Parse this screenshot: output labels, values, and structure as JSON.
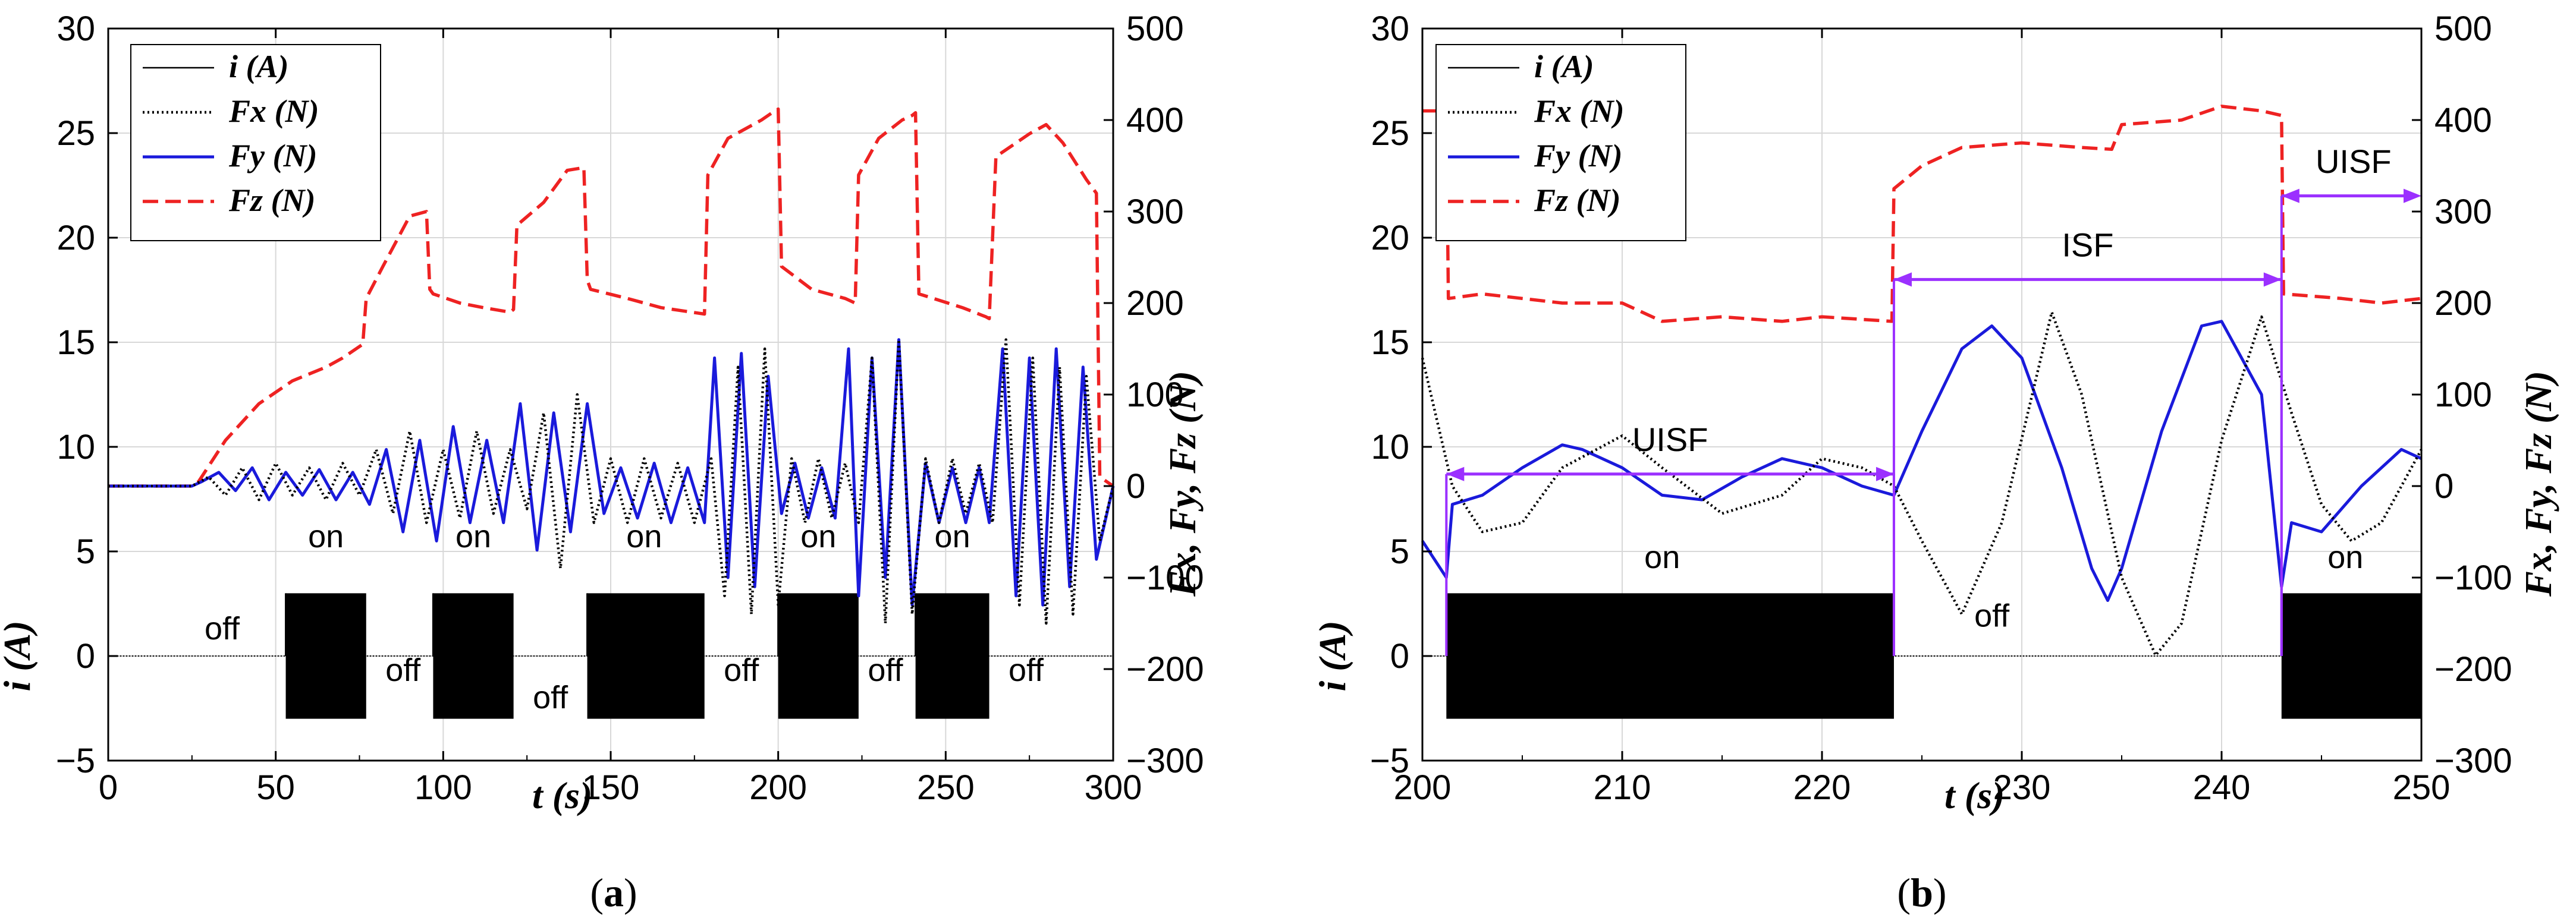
{
  "colors": {
    "i": "#000000",
    "fx": "#000000",
    "fy": "#1a1adb",
    "fz": "#ee2222",
    "isf_arrow": "#9b30ff",
    "grid": "#d8d8d8"
  },
  "chart_data": [
    {
      "type": "line",
      "panel": "a",
      "caption_open": "(",
      "caption_letter": "a",
      "caption_close": ")",
      "xlabel": "t (s)",
      "ylabel_left": "i (A)",
      "ylabel_right": "Fx, Fy, Fz (N)",
      "xlim": [
        0,
        300
      ],
      "ylim_left": [
        -5,
        30
      ],
      "ylim_right": [
        -300,
        500
      ],
      "xticks": [
        "0",
        "50",
        "100",
        "150",
        "200",
        "250",
        "300"
      ],
      "yticks_left": [
        "−5",
        "0",
        "5",
        "10",
        "15",
        "20",
        "25",
        "30"
      ],
      "yticks_right": [
        "−300",
        "−200",
        "−100",
        "0",
        "100",
        "200",
        "300",
        "400",
        "500"
      ],
      "grid": true,
      "legend_position": "top-left",
      "legend": [
        {
          "key": "i",
          "label": "i (A)",
          "style": "solid-thin"
        },
        {
          "key": "fx",
          "label": "Fx (N)",
          "style": "dotted"
        },
        {
          "key": "fy",
          "label": "Fy (N)",
          "style": "solid"
        },
        {
          "key": "fz",
          "label": "Fz (N)",
          "style": "dashed"
        }
      ],
      "current_bursts": [
        [
          53,
          77
        ],
        [
          97,
          121
        ],
        [
          143,
          178
        ],
        [
          200,
          224
        ],
        [
          241,
          263
        ]
      ],
      "current_amplitude_A": 3,
      "state_labels": [
        {
          "text": "off",
          "x": 34,
          "y": 0.8
        },
        {
          "text": "on",
          "x": 65,
          "y": 5.2
        },
        {
          "text": "off",
          "x": 88,
          "y": -1.2
        },
        {
          "text": "on",
          "x": 109,
          "y": 5.2
        },
        {
          "text": "off",
          "x": 132,
          "y": -2.5
        },
        {
          "text": "on",
          "x": 160,
          "y": 5.2
        },
        {
          "text": "off",
          "x": 189,
          "y": -1.2
        },
        {
          "text": "on",
          "x": 212,
          "y": 5.2
        },
        {
          "text": "off",
          "x": 232,
          "y": -1.2
        },
        {
          "text": "on",
          "x": 252,
          "y": 5.2
        },
        {
          "text": "off",
          "x": 274,
          "y": -1.2
        }
      ],
      "series": [
        {
          "name": "Fz (N)",
          "key": "fz",
          "x": [
            0,
            25,
            27,
            35,
            45,
            55,
            65,
            70,
            76,
            77,
            82,
            90,
            95,
            96,
            97,
            105,
            112,
            120,
            121,
            122,
            130,
            137,
            142,
            143,
            144,
            155,
            165,
            178,
            179,
            185,
            195,
            199,
            200,
            201,
            210,
            220,
            223,
            224,
            230,
            237,
            240,
            241,
            242,
            255,
            262,
            263,
            265,
            275,
            280,
            285,
            292,
            295,
            296,
            300
          ],
          "y": [
            0,
            0,
            5,
            50,
            90,
            115,
            130,
            140,
            155,
            205,
            240,
            295,
            300,
            215,
            210,
            200,
            195,
            190,
            193,
            285,
            310,
            345,
            348,
            225,
            215,
            205,
            195,
            188,
            340,
            380,
            400,
            410,
            412,
            240,
            215,
            205,
            200,
            340,
            380,
            400,
            405,
            408,
            210,
            195,
            185,
            183,
            360,
            385,
            395,
            375,
            335,
            320,
            10,
            0
          ]
        },
        {
          "name": "Fy (N)",
          "key": "fy",
          "x": [
            0,
            25,
            28,
            33,
            38,
            43,
            48,
            53,
            58,
            63,
            68,
            73,
            78,
            83,
            88,
            93,
            98,
            103,
            108,
            113,
            118,
            123,
            128,
            133,
            138,
            143,
            148,
            153,
            158,
            163,
            168,
            173,
            178,
            181,
            185,
            189,
            193,
            197,
            201,
            205,
            209,
            213,
            217,
            221,
            224,
            228,
            232,
            236,
            240,
            244,
            248,
            252,
            256,
            260,
            263,
            267,
            271,
            275,
            279,
            283,
            287,
            291,
            295,
            300
          ],
          "y": [
            0,
            0,
            5,
            15,
            -5,
            20,
            -15,
            15,
            -10,
            18,
            -15,
            15,
            -20,
            40,
            -50,
            50,
            -60,
            65,
            -40,
            50,
            -40,
            90,
            -70,
            80,
            -50,
            90,
            -30,
            20,
            -35,
            25,
            -40,
            20,
            -40,
            140,
            -100,
            145,
            -110,
            120,
            -30,
            25,
            -35,
            20,
            -35,
            150,
            -120,
            140,
            -100,
            160,
            -130,
            25,
            -40,
            20,
            -40,
            20,
            -40,
            150,
            -120,
            140,
            -130,
            150,
            -110,
            130,
            -80,
            0
          ]
        },
        {
          "name": "Fx (N)",
          "key": "fx",
          "x": [
            0,
            25,
            30,
            35,
            40,
            45,
            50,
            55,
            60,
            65,
            70,
            75,
            80,
            85,
            90,
            95,
            100,
            105,
            110,
            115,
            120,
            125,
            130,
            135,
            140,
            145,
            150,
            155,
            160,
            165,
            170,
            175,
            180,
            184,
            188,
            192,
            196,
            200,
            204,
            208,
            212,
            216,
            220,
            224,
            228,
            232,
            236,
            240,
            244,
            248,
            252,
            256,
            260,
            264,
            268,
            272,
            276,
            280,
            284,
            288,
            292,
            296,
            300
          ],
          "y": [
            0,
            0,
            10,
            -10,
            20,
            -15,
            25,
            -10,
            20,
            -15,
            25,
            -10,
            40,
            -30,
            60,
            -40,
            40,
            -35,
            60,
            -30,
            40,
            -25,
            80,
            -90,
            100,
            -40,
            30,
            -40,
            30,
            -35,
            25,
            -40,
            30,
            -120,
            130,
            -140,
            150,
            -130,
            30,
            -40,
            30,
            -35,
            25,
            -40,
            140,
            -150,
            160,
            -140,
            30,
            -40,
            30,
            -30,
            25,
            -40,
            160,
            -130,
            140,
            -150,
            130,
            -140,
            120,
            -60,
            0
          ]
        }
      ]
    },
    {
      "type": "line",
      "panel": "b",
      "caption_open": "(",
      "caption_letter": "b",
      "caption_close": ")",
      "xlabel": "t (s)",
      "ylabel_left": "i (A)",
      "ylabel_right": "Fx, Fy, Fz (N)",
      "xlim": [
        200,
        250
      ],
      "ylim_left": [
        -5,
        30
      ],
      "ylim_right": [
        -300,
        500
      ],
      "xticks": [
        "200",
        "210",
        "220",
        "230",
        "240",
        "250"
      ],
      "yticks_left": [
        "−5",
        "0",
        "5",
        "10",
        "15",
        "20",
        "25",
        "30"
      ],
      "yticks_right": [
        "−300",
        "−200",
        "−100",
        "0",
        "100",
        "200",
        "300",
        "400",
        "500"
      ],
      "grid": true,
      "legend_position": "top-left",
      "legend": [
        {
          "key": "i",
          "label": "i (A)",
          "style": "solid-thin"
        },
        {
          "key": "fx",
          "label": "Fx (N)",
          "style": "dotted"
        },
        {
          "key": "fy",
          "label": "Fy (N)",
          "style": "solid"
        },
        {
          "key": "fz",
          "label": "Fz (N)",
          "style": "dashed"
        }
      ],
      "current_bursts": [
        [
          201.2,
          223.6
        ],
        [
          243.0,
          250
        ]
      ],
      "current_amplitude_A": 3,
      "state_labels": [
        {
          "text": "on",
          "x": 212,
          "y": 4.2
        },
        {
          "text": "off",
          "x": 228.5,
          "y": 1.4
        },
        {
          "text": "on",
          "x": 246.2,
          "y": 4.2
        }
      ],
      "regions": [
        {
          "label": "UISF",
          "x0": 201.2,
          "x1": 223.6,
          "arrow_y": 8.7,
          "label_x": 212.4,
          "label_y": 9.8
        },
        {
          "label": "ISF",
          "x0": 223.6,
          "x1": 243.0,
          "arrow_y": 18.0,
          "label_x": 233.3,
          "label_y": 19.1
        },
        {
          "label": "UISF",
          "x0": 243.0,
          "x1": 250,
          "arrow_y": 22.0,
          "label_x": 246.6,
          "label_y": 23.1,
          "open_right": true
        }
      ],
      "series": [
        {
          "name": "Fz (N)",
          "key": "fz",
          "x": [
            200,
            201.2,
            201.3,
            203,
            205,
            207,
            210,
            212,
            215,
            218,
            220,
            223.5,
            223.6,
            225,
            227,
            230,
            233,
            234.5,
            235,
            238,
            240,
            242,
            243.0,
            243.1,
            246,
            248,
            250
          ],
          "y": [
            410,
            410,
            205,
            210,
            205,
            200,
            200,
            180,
            185,
            180,
            185,
            180,
            325,
            350,
            370,
            375,
            370,
            368,
            395,
            400,
            415,
            410,
            405,
            210,
            205,
            200,
            205
          ]
        },
        {
          "name": "Fy (N)",
          "key": "fy",
          "x": [
            200,
            201.2,
            201.5,
            203,
            205,
            207,
            208,
            210,
            212,
            214,
            216,
            218,
            220,
            222,
            223.6,
            225,
            227,
            228.5,
            230,
            232,
            233.5,
            234.3,
            235,
            237,
            239,
            240,
            242,
            243.0,
            243.5,
            245,
            247,
            249,
            250
          ],
          "y": [
            -60,
            -100,
            -20,
            -10,
            20,
            45,
            40,
            20,
            -10,
            -15,
            10,
            30,
            20,
            0,
            -10,
            60,
            150,
            175,
            140,
            20,
            -90,
            -125,
            -90,
            60,
            175,
            180,
            100,
            -110,
            -40,
            -50,
            0,
            40,
            30
          ]
        },
        {
          "name": "Fx (N)",
          "key": "fx",
          "x": [
            200,
            201.5,
            203,
            205,
            207,
            210,
            212,
            215,
            218,
            220,
            222,
            223.6,
            225,
            227,
            229,
            231.5,
            233,
            235,
            236.7,
            238,
            240,
            242,
            243.5,
            245,
            246.5,
            248,
            250
          ],
          "y": [
            140,
            0,
            -50,
            -40,
            20,
            55,
            20,
            -30,
            -10,
            30,
            20,
            0,
            -60,
            -140,
            -40,
            190,
            100,
            -100,
            -185,
            -150,
            50,
            185,
            80,
            -20,
            -60,
            -40,
            40
          ]
        }
      ]
    }
  ]
}
